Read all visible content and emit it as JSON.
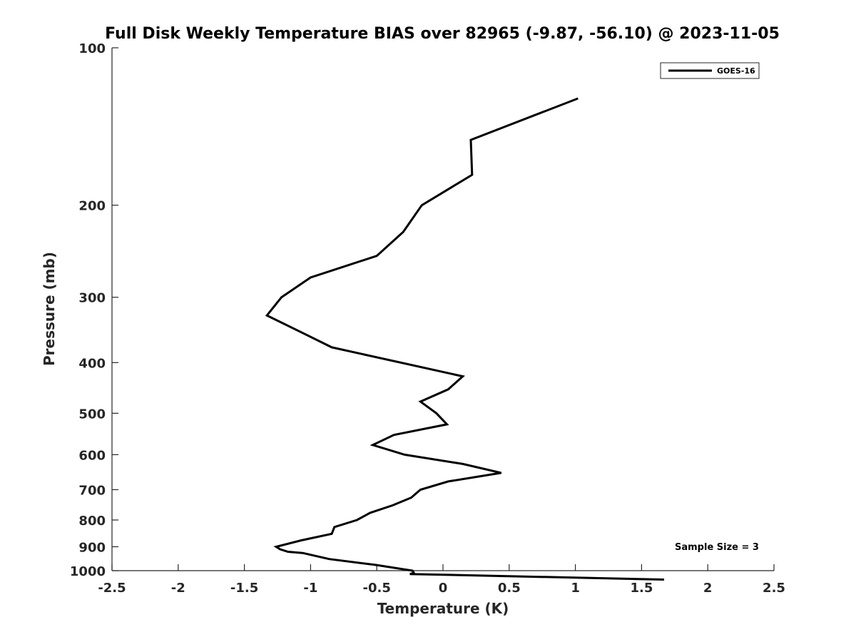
{
  "chart_data": {
    "type": "line",
    "title": "Full Disk Weekly Temperature BIAS over 82965 (-9.87, -56.10) @ 2023-11-05",
    "xlabel": "Temperature (K)",
    "ylabel": "Pressure (mb)",
    "xlim": [
      -2.5,
      2.5
    ],
    "ylim": [
      1000,
      100
    ],
    "yscale": "log",
    "y_reversed": true,
    "xticks": [
      -2.5,
      -2,
      -1.5,
      -1,
      -0.5,
      0,
      0.5,
      1,
      1.5,
      2,
      2.5
    ],
    "xtick_labels": [
      "-2.5",
      "-2",
      "-1.5",
      "-1",
      "-0.5",
      "0",
      "0.5",
      "1",
      "1.5",
      "2",
      "2.5"
    ],
    "yticks": [
      100,
      200,
      300,
      400,
      500,
      600,
      700,
      800,
      900,
      1000
    ],
    "ytick_labels": [
      "100",
      "200",
      "300",
      "400",
      "500",
      "600",
      "700",
      "800",
      "900",
      "1000"
    ],
    "grid": false,
    "legend_position": "top-right",
    "annotation": "Sample Size = 3",
    "series": [
      {
        "name": "GOES-16",
        "color": "#000000",
        "points": [
          {
            "x": 1.02,
            "p": 125
          },
          {
            "x": 0.21,
            "p": 150
          },
          {
            "x": 0.22,
            "p": 175
          },
          {
            "x": -0.16,
            "p": 200
          },
          {
            "x": -0.3,
            "p": 225
          },
          {
            "x": -0.5,
            "p": 250
          },
          {
            "x": -1.0,
            "p": 275
          },
          {
            "x": -1.22,
            "p": 300
          },
          {
            "x": -1.33,
            "p": 325
          },
          {
            "x": -1.07,
            "p": 350
          },
          {
            "x": -0.84,
            "p": 374
          },
          {
            "x": 0.15,
            "p": 425
          },
          {
            "x": 0.04,
            "p": 450
          },
          {
            "x": -0.17,
            "p": 475
          },
          {
            "x": -0.05,
            "p": 500
          },
          {
            "x": 0.03,
            "p": 525
          },
          {
            "x": -0.37,
            "p": 550
          },
          {
            "x": -0.53,
            "p": 575
          },
          {
            "x": -0.29,
            "p": 600
          },
          {
            "x": 0.15,
            "p": 625
          },
          {
            "x": 0.44,
            "p": 650
          },
          {
            "x": 0.04,
            "p": 675
          },
          {
            "x": -0.17,
            "p": 700
          },
          {
            "x": -0.24,
            "p": 725
          },
          {
            "x": -0.38,
            "p": 750
          },
          {
            "x": -0.55,
            "p": 775
          },
          {
            "x": -0.65,
            "p": 800
          },
          {
            "x": -0.82,
            "p": 825
          },
          {
            "x": -0.84,
            "p": 850
          },
          {
            "x": -1.07,
            "p": 875
          },
          {
            "x": -1.26,
            "p": 900
          },
          {
            "x": -1.23,
            "p": 910
          },
          {
            "x": -1.17,
            "p": 920
          },
          {
            "x": -1.06,
            "p": 925
          },
          {
            "x": -0.86,
            "p": 950
          },
          {
            "x": -0.51,
            "p": 975
          },
          {
            "x": -0.23,
            "p": 1000
          },
          {
            "x": -0.22,
            "p": 1010
          },
          {
            "x": -0.25,
            "p": 1015
          },
          {
            "x": 1.67,
            "p": 1040
          }
        ]
      }
    ]
  }
}
